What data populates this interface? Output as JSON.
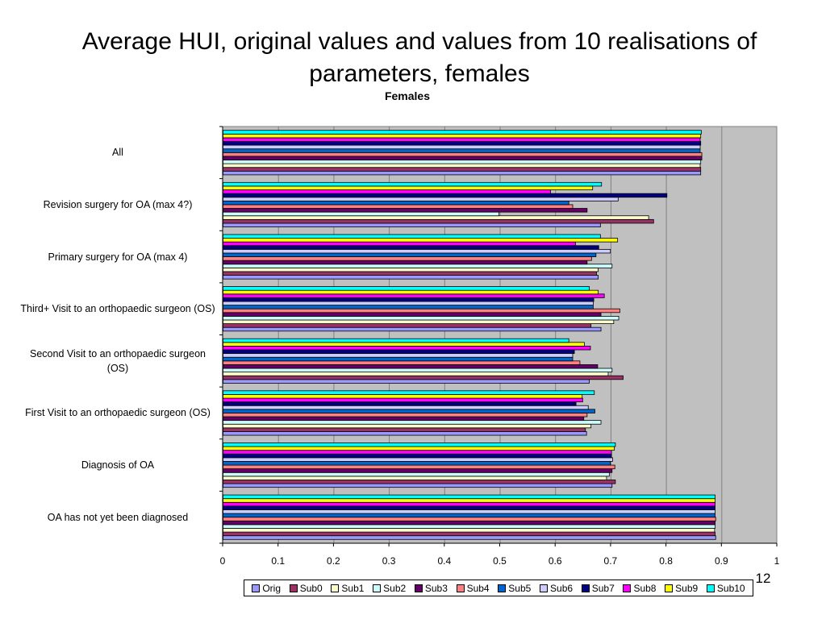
{
  "slide": {
    "title": "Average HUI, original values and values from 10 realisations of parameters, females",
    "page_number": "12"
  },
  "chart_data": {
    "type": "bar",
    "orientation": "horizontal",
    "title": "Females",
    "xlabel": "",
    "ylabel": "",
    "xlim": [
      0,
      1
    ],
    "xticks": [
      "0",
      "0.1",
      "0.2",
      "0.3",
      "0.4",
      "0.5",
      "0.6",
      "0.7",
      "0.8",
      "0.9",
      "1"
    ],
    "grid": "vertical",
    "legend_position": "bottom",
    "categories": [
      "All",
      "Revision surgery for OA (max 4?)",
      "Primary surgery for OA (max 4)",
      "Third+ Visit to an orthopaedic surgeon (OS)",
      "Second Visit to an orthopaedic surgeon (OS)",
      "First Visit to an orthopaedic surgeon (OS)",
      "Diagnosis of OA",
      "OA has not yet been diagnosed"
    ],
    "series": [
      {
        "name": "Orig",
        "color": "#9999ff",
        "values": [
          0.862,
          0.681,
          0.677,
          0.682,
          0.661,
          0.656,
          0.702,
          0.889
        ]
      },
      {
        "name": "Sub0",
        "color": "#993366",
        "values": [
          0.862,
          0.777,
          0.674,
          0.664,
          0.722,
          0.654,
          0.708,
          0.888
        ]
      },
      {
        "name": "Sub1",
        "color": "#ffffcc",
        "values": [
          0.861,
          0.768,
          0.677,
          0.705,
          0.695,
          0.664,
          0.692,
          0.887
        ]
      },
      {
        "name": "Sub2",
        "color": "#ccffff",
        "values": [
          0.862,
          0.498,
          0.702,
          0.714,
          0.702,
          0.682,
          0.697,
          0.888
        ]
      },
      {
        "name": "Sub3",
        "color": "#660066",
        "values": [
          0.864,
          0.657,
          0.657,
          0.682,
          0.676,
          0.651,
          0.702,
          0.888
        ]
      },
      {
        "name": "Sub4",
        "color": "#ff8080",
        "values": [
          0.864,
          0.631,
          0.665,
          0.716,
          0.644,
          0.657,
          0.707,
          0.889
        ]
      },
      {
        "name": "Sub5",
        "color": "#0066cc",
        "values": [
          0.861,
          0.624,
          0.673,
          0.668,
          0.631,
          0.671,
          0.699,
          0.888
        ]
      },
      {
        "name": "Sub6",
        "color": "#ccccff",
        "values": [
          0.861,
          0.713,
          0.699,
          0.668,
          0.631,
          0.659,
          0.703,
          0.888
        ]
      },
      {
        "name": "Sub7",
        "color": "#000080",
        "values": [
          0.862,
          0.801,
          0.678,
          0.669,
          0.634,
          0.637,
          0.701,
          0.888
        ]
      },
      {
        "name": "Sub8",
        "color": "#ff00ff",
        "values": [
          0.861,
          0.591,
          0.636,
          0.688,
          0.663,
          0.649,
          0.701,
          0.888
        ]
      },
      {
        "name": "Sub9",
        "color": "#ffff00",
        "values": [
          0.862,
          0.667,
          0.712,
          0.677,
          0.652,
          0.648,
          0.706,
          0.888
        ]
      },
      {
        "name": "Sub10",
        "color": "#00ffff",
        "values": [
          0.863,
          0.683,
          0.681,
          0.661,
          0.624,
          0.67,
          0.708,
          0.888
        ]
      }
    ]
  },
  "colors": {
    "plot_background": "#c0c0c0",
    "gridline": "#808080",
    "bar_outline": "#000000"
  }
}
